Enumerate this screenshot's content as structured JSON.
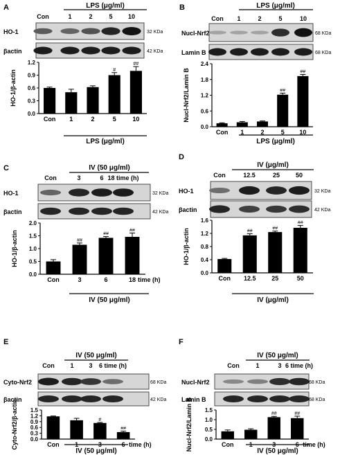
{
  "chart_data": [
    {
      "type": "bar",
      "panel_letter": "A",
      "treatment_header": "LPS (μg/ml)",
      "blot_columns": [
        "Con",
        "1",
        "2",
        "5",
        "10"
      ],
      "blots": [
        {
          "label": "HO-1",
          "size": "32 KDa",
          "intensity": [
            0.55,
            0.5,
            0.6,
            0.85,
            0.95
          ]
        },
        {
          "label": "βactin",
          "size": "42 KDa",
          "intensity": [
            0.9,
            0.9,
            0.9,
            0.9,
            0.9
          ]
        }
      ],
      "categories": [
        "Con",
        "1",
        "2",
        "5",
        "10"
      ],
      "values": [
        0.6,
        0.5,
        0.62,
        0.9,
        1.0
      ],
      "errors": [
        0.02,
        0.07,
        0.03,
        0.06,
        0.1
      ],
      "significance": [
        "",
        "",
        "",
        "#",
        "##"
      ],
      "ylabel": "HO-1/β-actin",
      "ylim": [
        0,
        1.2
      ],
      "yticks": [
        "0.0",
        "0.3",
        "0.6",
        "0.9",
        "1.2"
      ],
      "xlabel": "LPS (μg/ml)"
    },
    {
      "type": "bar",
      "panel_letter": "B",
      "treatment_header": "LPS (μg/ml)",
      "blot_columns": [
        "Con",
        "1",
        "2",
        "5",
        "10"
      ],
      "blots": [
        {
          "label": "Nucl-Nrf2",
          "size": "68 KDa",
          "intensity": [
            0.15,
            0.15,
            0.15,
            0.8,
            0.95
          ]
        },
        {
          "label": "Lamin B",
          "size": "68 KDa",
          "intensity": [
            0.9,
            0.9,
            0.9,
            0.9,
            0.9
          ]
        }
      ],
      "categories": [
        "Con",
        "1",
        "2",
        "5",
        "10"
      ],
      "values": [
        0.13,
        0.17,
        0.2,
        1.22,
        1.93
      ],
      "errors": [
        0.02,
        0.03,
        0.02,
        0.06,
        0.06
      ],
      "significance": [
        "",
        "",
        "",
        "##",
        "##"
      ],
      "ylabel": "Nucl-Nrf2/Lamin B",
      "ylim": [
        0,
        2.4
      ],
      "yticks": [
        "0.0",
        "0.6",
        "1.2",
        "1.8",
        "2.4"
      ],
      "xlabel": "LPS (μg/ml)"
    },
    {
      "type": "bar",
      "panel_letter": "C",
      "treatment_header": "IV (50 μg/ml)",
      "blot_columns": [
        "Con",
        "3",
        "6",
        "18 time (h)"
      ],
      "blots": [
        {
          "label": "HO-1",
          "size": "32 KDa",
          "intensity": [
            0.5,
            0.85,
            0.9,
            0.9
          ]
        },
        {
          "label": "βactin",
          "size": "42 KDa",
          "intensity": [
            0.85,
            0.85,
            0.85,
            0.85
          ]
        }
      ],
      "categories": [
        "Con",
        "3",
        "6",
        "18"
      ],
      "values": [
        0.5,
        1.15,
        1.42,
        1.46
      ],
      "errors": [
        0.07,
        0.07,
        0.05,
        0.15
      ],
      "significance": [
        "",
        "##",
        "##",
        "##"
      ],
      "ylabel": "HO-1/β-actin",
      "ylim": [
        0,
        2.0
      ],
      "yticks": [
        "0.0",
        "0.5",
        "1.0",
        "1.5",
        "2.0"
      ],
      "xtick_suffix": "time (h)",
      "xlabel": "IV (50 μg/ml)"
    },
    {
      "type": "bar",
      "panel_letter": "D",
      "treatment_header": "IV (μg/ml)",
      "blot_columns": [
        "Con",
        "12.5",
        "25",
        "50"
      ],
      "blots": [
        {
          "label": "HO-1",
          "size": "32 KDa",
          "intensity": [
            0.45,
            0.9,
            0.85,
            0.9
          ]
        },
        {
          "label": "βactin",
          "size": "42 KDa",
          "intensity": [
            0.85,
            0.7,
            0.75,
            0.8
          ]
        }
      ],
      "categories": [
        "Con",
        "12.5",
        "25",
        "50"
      ],
      "values": [
        0.42,
        1.14,
        1.24,
        1.37
      ],
      "errors": [
        0.02,
        0.05,
        0.03,
        0.07
      ],
      "significance": [
        "",
        "##",
        "##",
        "##"
      ],
      "ylabel": "HO-1/β-actin",
      "ylim": [
        0,
        1.6
      ],
      "yticks": [
        "0.0",
        "0.4",
        "0.8",
        "1.2",
        "1.6"
      ],
      "xlabel": "IV (μg/ml)"
    },
    {
      "type": "bar",
      "panel_letter": "E",
      "treatment_header": "IV (50 μg/ml)",
      "blot_columns": [
        "Con",
        "1",
        "3",
        "6 time (h)"
      ],
      "blots": [
        {
          "label": "Cyto-Nrf2",
          "size": "68 KDa",
          "intensity": [
            0.9,
            0.85,
            0.75,
            0.45
          ]
        },
        {
          "label": "βactin",
          "size": "42 KDa",
          "intensity": [
            0.85,
            0.85,
            0.85,
            0.85
          ]
        }
      ],
      "categories": [
        "Con",
        "1",
        "3",
        "6"
      ],
      "values": [
        1.17,
        0.97,
        0.83,
        0.36
      ],
      "errors": [
        0.02,
        0.1,
        0.03,
        0.05
      ],
      "significance": [
        "",
        "",
        "#",
        "##"
      ],
      "ylabel": "Cyto-Nrf2/β-actin",
      "ylim": [
        0,
        1.5
      ],
      "yticks": [
        "0.0",
        "0.3",
        "0.6",
        "0.9",
        "1.2",
        "1.5"
      ],
      "xtick_suffix": "time (h)",
      "xlabel": "IV (50 μg/ml)"
    },
    {
      "type": "bar",
      "panel_letter": "F",
      "treatment_header": "IV (50 μg/ml)",
      "blot_columns": [
        "Con",
        "1",
        "3",
        "6 time (h)"
      ],
      "blots": [
        {
          "label": "Nucl-Nrf2",
          "size": "68 KDa",
          "intensity": [
            0.3,
            0.35,
            0.8,
            0.85
          ]
        },
        {
          "label": "Lamin B",
          "size": "68 KDa",
          "intensity": [
            0.85,
            0.85,
            0.85,
            0.85
          ]
        }
      ],
      "categories": [
        "Con",
        "1",
        "3",
        "6"
      ],
      "values": [
        0.4,
        0.48,
        1.13,
        1.08
      ],
      "errors": [
        0.07,
        0.05,
        0.04,
        0.1
      ],
      "significance": [
        "",
        "",
        "##",
        "##"
      ],
      "ylabel": "Nucl-Nrf2/Lamin B",
      "ylim": [
        0,
        1.5
      ],
      "yticks": [
        "0.0",
        "0.5",
        "1.0",
        "1.5"
      ],
      "xtick_suffix": "time (h)",
      "xlabel": "IV (50 μg/ml)"
    }
  ]
}
